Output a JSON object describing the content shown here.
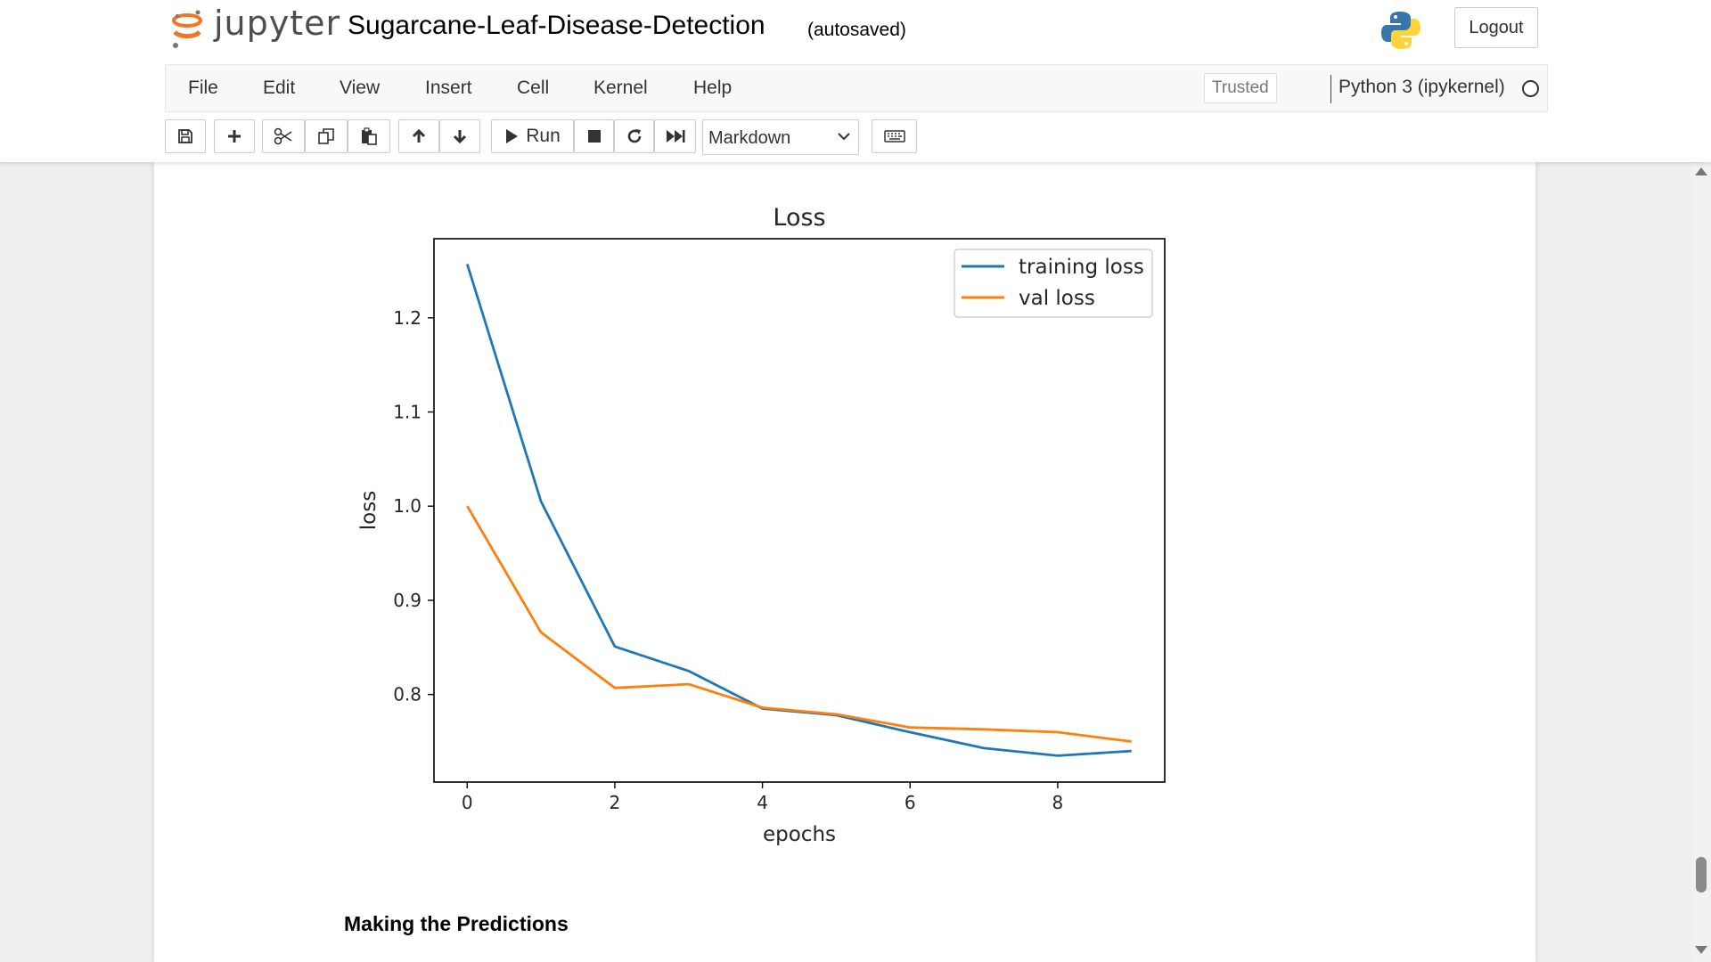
{
  "header": {
    "logo_text": "jupyter",
    "notebook_title": "Sugarcane-Leaf-Disease-Detection",
    "save_status": "(autosaved)",
    "logout_label": "Logout"
  },
  "menubar": {
    "items": [
      "File",
      "Edit",
      "View",
      "Insert",
      "Cell",
      "Kernel",
      "Help"
    ],
    "trusted_label": "Trusted",
    "kernel_name": "Python 3 (ipykernel)"
  },
  "toolbar": {
    "run_label": "Run",
    "cell_type": "Markdown",
    "buttons": [
      "save-icon",
      "plus-icon",
      "scissors-icon",
      "copy-icon",
      "paste-icon",
      "arrow-up-icon",
      "arrow-down-icon",
      "run-icon",
      "stop-icon",
      "restart-icon",
      "fast-forward-icon",
      "keyboard-icon"
    ]
  },
  "notebook": {
    "markdown_heading": "Making the Predictions"
  },
  "colors": {
    "training": "#1f77b4",
    "val": "#ff7f0e"
  },
  "chart_data": {
    "type": "line",
    "title": "Loss",
    "xlabel": "epochs",
    "ylabel": "loss",
    "x": [
      0,
      1,
      2,
      3,
      4,
      5,
      6,
      7,
      8,
      9
    ],
    "xlim": [
      -0.45,
      9.45
    ],
    "ylim": [
      0.707,
      1.284
    ],
    "xticks": [
      0,
      2,
      4,
      6,
      8
    ],
    "yticks": [
      0.8,
      0.9,
      1.0,
      1.1,
      1.2
    ],
    "ytick_labels": [
      "0.8",
      "0.9",
      "1.0",
      "1.1",
      "1.2"
    ],
    "legend_position": "top-right",
    "series": [
      {
        "name": "training loss",
        "values": [
          1.257,
          1.005,
          0.851,
          0.825,
          0.785,
          0.778,
          0.76,
          0.743,
          0.735,
          0.74
        ]
      },
      {
        "name": "val loss",
        "values": [
          1.0,
          0.866,
          0.807,
          0.811,
          0.786,
          0.779,
          0.765,
          0.763,
          0.76,
          0.75
        ]
      }
    ]
  }
}
